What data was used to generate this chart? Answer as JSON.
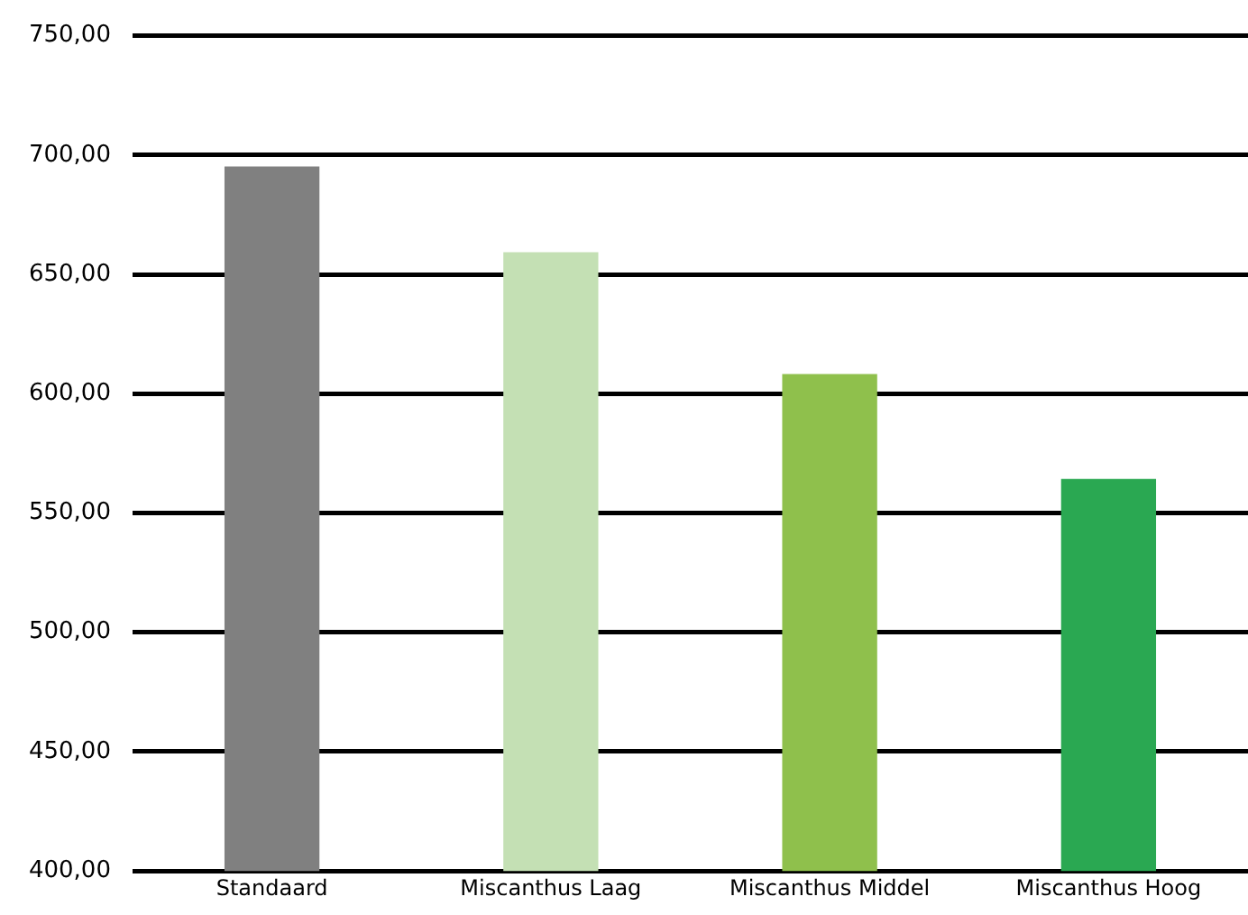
{
  "chart_data": {
    "type": "bar",
    "categories": [
      "Standaard",
      "Miscanthus Laag",
      "Miscanthus Middel",
      "Miscanthus Hoog"
    ],
    "values": [
      695,
      659,
      608,
      564
    ],
    "colors": [
      "#808080",
      "#c4e0b4",
      "#8fc04c",
      "#2aa852"
    ],
    "ylim": [
      400,
      750
    ],
    "yticks": [
      {
        "value": 400,
        "label": "400,00"
      },
      {
        "value": 450,
        "label": "450,00"
      },
      {
        "value": 500,
        "label": "500,00"
      },
      {
        "value": 550,
        "label": "550,00"
      },
      {
        "value": 600,
        "label": "600,00"
      },
      {
        "value": 650,
        "label": "650,00"
      },
      {
        "value": 700,
        "label": "700,00"
      },
      {
        "value": 750,
        "label": "750,00"
      }
    ],
    "grid": "y",
    "legend": false
  }
}
